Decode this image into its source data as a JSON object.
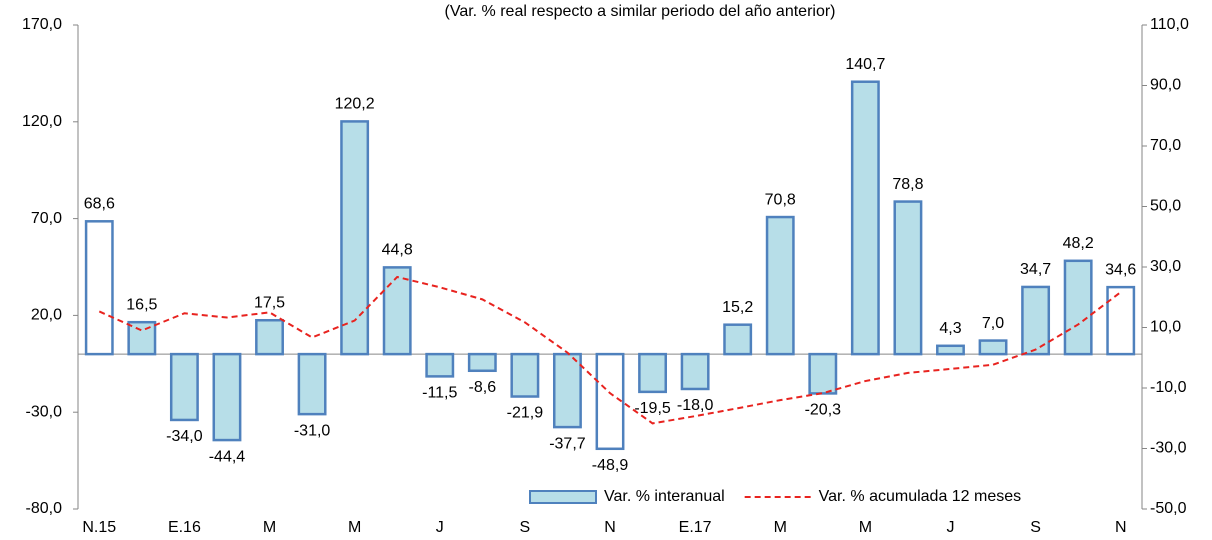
{
  "chart_data": {
    "type": "bar_line",
    "title": "(Var. % real respecto a similar periodo del año anterior)",
    "categories": [
      "N.15",
      null,
      "E.16",
      null,
      "M",
      null,
      "M",
      null,
      "J",
      null,
      "S",
      null,
      "N",
      null,
      "E.17",
      null,
      "M",
      null,
      "M",
      null,
      "J",
      null,
      "S",
      null,
      "N"
    ],
    "series": [
      {
        "name": "Var. % interanual",
        "type": "bar",
        "color": "#b7dee8",
        "edge_color": "#4f81bd",
        "point_colors": [
          "#ffffff",
          "#b7dee8",
          "#b7dee8",
          "#b7dee8",
          "#b7dee8",
          "#b7dee8",
          "#b7dee8",
          "#b7dee8",
          "#b7dee8",
          "#b7dee8",
          "#b7dee8",
          "#b7dee8",
          "#ffffff",
          "#b7dee8",
          "#b7dee8",
          "#b7dee8",
          "#b7dee8",
          "#b7dee8",
          "#b7dee8",
          "#b7dee8",
          "#b7dee8",
          "#b7dee8",
          "#b7dee8",
          "#b7dee8",
          "#ffffff"
        ],
        "values": [
          68.6,
          16.5,
          -34.0,
          -44.4,
          17.5,
          -31.0,
          120.2,
          44.8,
          -11.5,
          -8.6,
          -21.9,
          -37.7,
          -48.9,
          -19.5,
          -18.0,
          15.2,
          70.8,
          -20.3,
          140.7,
          78.8,
          4.3,
          7.0,
          34.7,
          48.2,
          34.6
        ],
        "value_labels": [
          "68,6",
          "16,5",
          "-34,0",
          "-44,4",
          "17,5",
          "-31,0",
          "120,2",
          "44,8",
          "-11,5",
          "-8,6",
          "-21,9",
          "-37,7",
          "-48,9",
          "-19,5",
          "-18,0",
          "15,2",
          "70,8",
          "-20,3",
          "140,7",
          "78,8",
          "4,3",
          "7,0",
          "34,7",
          "48,2",
          "34,6"
        ]
      },
      {
        "name": "Var. % acumulada 12 meses",
        "type": "line",
        "axis": "y2",
        "color": "#e8231f",
        "dashed": true,
        "values": [
          15.3,
          9.0,
          14.7,
          13.3,
          15.0,
          6.7,
          12.3,
          26.7,
          23.3,
          19.3,
          11.7,
          1.7,
          -11.7,
          -21.7,
          -19.3,
          -16.7,
          -14.0,
          -11.7,
          -7.7,
          -5.0,
          -3.7,
          -2.3,
          2.7,
          11.0,
          21.7
        ]
      }
    ],
    "ylim": [
      -80,
      170
    ],
    "yticks": [
      {
        "value": 170,
        "label": "170,0"
      },
      {
        "value": 120,
        "label": "120,0"
      },
      {
        "value": 70,
        "label": "70,0"
      },
      {
        "value": 20,
        "label": "20,0"
      },
      {
        "value": -30,
        "label": "-30,0"
      },
      {
        "value": -80,
        "label": "-80,0"
      }
    ],
    "y2lim": [
      -50,
      110
    ],
    "y2ticks": [
      {
        "value": 110,
        "label": "110,0"
      },
      {
        "value": 90,
        "label": "90,0"
      },
      {
        "value": 70,
        "label": "70,0"
      },
      {
        "value": 50,
        "label": "50,0"
      },
      {
        "value": 30,
        "label": "30,0"
      },
      {
        "value": 10,
        "label": "10,0"
      },
      {
        "value": -10,
        "label": "-10,0"
      },
      {
        "value": -30,
        "label": "-30,0"
      },
      {
        "value": -50,
        "label": "-50,0"
      }
    ],
    "legend": "bottom-right"
  }
}
